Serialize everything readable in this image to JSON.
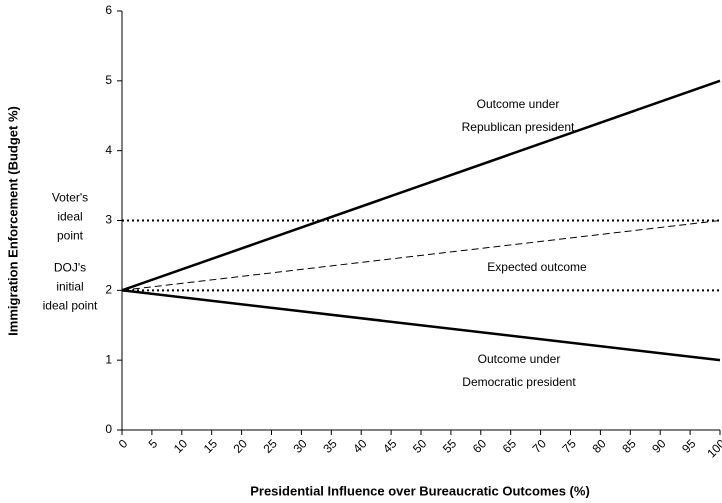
{
  "chart_data": {
    "type": "line",
    "x_label": "Presidential Influence over Bureaucratic Outcomes (%)",
    "y_label": "Immigration Enforcement (Budget %)",
    "x": [
      0,
      100
    ],
    "xlim": [
      0,
      100
    ],
    "xticks": [
      0,
      5,
      10,
      15,
      20,
      25,
      30,
      35,
      40,
      45,
      50,
      55,
      60,
      65,
      70,
      75,
      80,
      85,
      90,
      95,
      100
    ],
    "ylim": [
      0,
      6
    ],
    "yticks": [
      0,
      1,
      2,
      3,
      4,
      5,
      6
    ],
    "series": [
      {
        "color": "#000000",
        "style": "solid",
        "values": [
          2,
          5
        ]
      },
      {
        "color": "#000000",
        "style": "dashed",
        "values": [
          2,
          3
        ]
      },
      {
        "color": "#000000",
        "style": "solid",
        "values": [
          2,
          1
        ]
      }
    ],
    "reference_lines": [
      {
        "value": 3,
        "label": [
          "Voter's",
          "ideal",
          "point"
        ]
      },
      {
        "value": 2,
        "label": [
          "DOJ's",
          "initial",
          "ideal point"
        ]
      }
    ],
    "annotations": [
      {
        "lines": [
          "Outcome under",
          "Republican president"
        ]
      },
      {
        "lines": [
          "Expected outcome"
        ]
      },
      {
        "lines": [
          "Outcome under",
          "Democratic president"
        ]
      }
    ]
  }
}
